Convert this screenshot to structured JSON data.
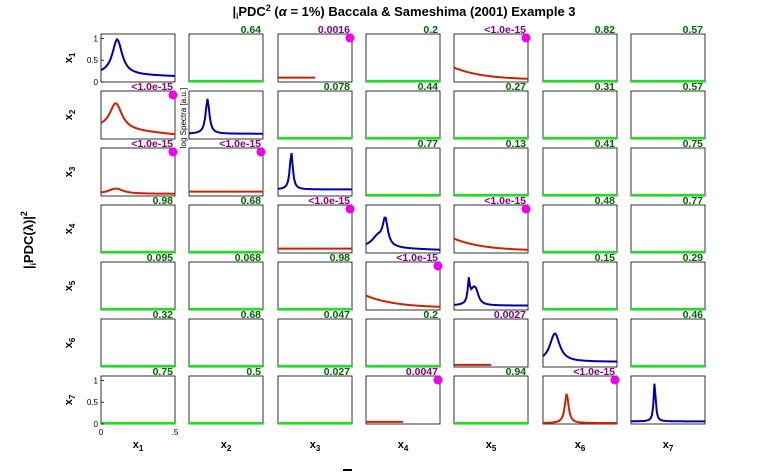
{
  "chart_data": {
    "type": "line",
    "title_main": "PDC",
    "title_sub": "i",
    "title_sup": "2",
    "title_rest_1": " (",
    "title_alpha": "α",
    "title_rest_2": " = 1%) Baccala & Sameshima (2001) Example 3",
    "ylabel_main": "PDC(λ)",
    "ylabel_sub": "i",
    "ylabel_sup": "2",
    "spectra_label": "log Spectra [a.u.]",
    "xlim": [
      0,
      0.5
    ],
    "ylim": [
      0,
      1.1
    ],
    "x_ticks": [
      "0",
      ".5"
    ],
    "y_ticks": [
      "0",
      "0.5",
      "1"
    ],
    "row_labels": [
      "x1",
      "x2",
      "x3",
      "x4",
      "x5",
      "x6",
      "x7"
    ],
    "col_labels": [
      "x1",
      "x2",
      "x3",
      "x4",
      "x5",
      "x6",
      "x7"
    ],
    "row_label_main": [
      "x",
      "x",
      "x",
      "x",
      "x",
      "x",
      "x"
    ],
    "row_label_sub": [
      "1",
      "2",
      "3",
      "4",
      "5",
      "6",
      "7"
    ],
    "col_label_main": [
      "x",
      "x",
      "x",
      "x",
      "x",
      "x",
      "x"
    ],
    "col_label_sub": [
      "1",
      "2",
      "3",
      "4",
      "5",
      "6",
      "7"
    ],
    "colors": {
      "significant": "#cc2200",
      "not_significant": "#22dd22",
      "spectra": "#0000aa",
      "pvalue_ns": "#006600",
      "pvalue_sig": "#880088",
      "marker": "#ee00ee"
    },
    "p_values": [
      [
        "",
        "0.64",
        "0.0016",
        "0.2",
        "<1.0e-15",
        "0.82",
        "0.57"
      ],
      [
        "<1.0e-15",
        "",
        "0.078",
        "0.44",
        "0.27",
        "0.31",
        "0.57"
      ],
      [
        "<1.0e-15",
        "<1.0e-15",
        "",
        "0.77",
        "0.13",
        "0.41",
        "0.75"
      ],
      [
        "0.98",
        "0.68",
        "<1.0e-15",
        "",
        "<1.0e-15",
        "0.48",
        "0.77"
      ],
      [
        "0.095",
        "0.068",
        "0.98",
        "<1.0e-15",
        "",
        "0.15",
        "0.29"
      ],
      [
        "0.32",
        "0.68",
        "0.047",
        "0.2",
        "0.0027",
        "",
        "0.46"
      ],
      [
        "0.75",
        "0.5",
        "0.027",
        "0.0047",
        "0.94",
        "<1.0e-15",
        ""
      ]
    ],
    "significant_marker": [
      [
        false,
        false,
        true,
        false,
        true,
        false,
        false
      ],
      [
        true,
        false,
        false,
        false,
        false,
        false,
        false
      ],
      [
        true,
        true,
        false,
        false,
        false,
        false,
        false
      ],
      [
        false,
        false,
        true,
        false,
        true,
        false,
        false
      ],
      [
        false,
        false,
        false,
        true,
        false,
        false,
        false
      ],
      [
        false,
        false,
        false,
        false,
        false,
        false,
        false
      ],
      [
        false,
        false,
        false,
        true,
        false,
        true,
        false
      ]
    ],
    "pdc_kind": [
      [
        "spec",
        "flat",
        "sig-flat",
        "flat",
        "sig-decay",
        "flat",
        "flat"
      ],
      [
        "sig-peak",
        "spec",
        "flat",
        "flat",
        "flat",
        "flat",
        "flat"
      ],
      [
        "sig-bump",
        "sig-flat",
        "spec",
        "flat",
        "flat",
        "flat",
        "flat"
      ],
      [
        "flat",
        "flat",
        "sig-flat",
        "spec",
        "sig-decay",
        "flat",
        "flat"
      ],
      [
        "flat",
        "flat",
        "flat",
        "sig-decay",
        "spec",
        "flat",
        "flat"
      ],
      [
        "flat",
        "flat",
        "flat",
        "flat",
        "sig-short",
        "spec",
        "flat"
      ],
      [
        "flat",
        "flat",
        "flat",
        "sig-short",
        "flat",
        "sig-sharp",
        "spec"
      ]
    ]
  }
}
